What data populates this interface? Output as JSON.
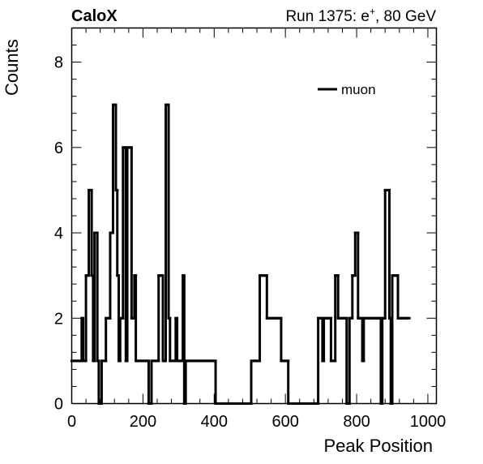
{
  "header": {
    "experiment": "CaloX",
    "run_prefix": "Run 1375: e",
    "run_superscript": "+",
    "run_suffix": ", 80 GeV"
  },
  "chart_data": {
    "type": "histogram",
    "title": "",
    "xlabel": "Peak Position",
    "ylabel": "Counts",
    "xlim": [
      0,
      1024
    ],
    "ylim": [
      0,
      8.8
    ],
    "x_ticks": [
      0,
      200,
      400,
      600,
      800,
      1000
    ],
    "y_ticks": [
      0,
      2,
      4,
      6,
      8
    ],
    "bin_width": 4,
    "legend": {
      "position": "top-right",
      "entries": [
        "muon"
      ]
    },
    "grid": false,
    "series": [
      {
        "name": "muon",
        "color": "#000000",
        "bin_edges_start": 0,
        "values": [
          1,
          1,
          1,
          1,
          1,
          1,
          1,
          2,
          1,
          1,
          3,
          3,
          5,
          5,
          3,
          1,
          4,
          4,
          1,
          0,
          0,
          1,
          1,
          1,
          2,
          2,
          2,
          4,
          4,
          7,
          7,
          5,
          3,
          1,
          2,
          2,
          6,
          6,
          1,
          6,
          6,
          6,
          2,
          2,
          3,
          1,
          1,
          1,
          1,
          1,
          1,
          1,
          1,
          1,
          0,
          0,
          1,
          1,
          1,
          1,
          1,
          3,
          3,
          3,
          1,
          1,
          7,
          7,
          2,
          1,
          1,
          1,
          1,
          2,
          1,
          1,
          1,
          1,
          3,
          0,
          1,
          1,
          1,
          1,
          1,
          1,
          1,
          1,
          1,
          1,
          1,
          1,
          1,
          1,
          1,
          1,
          1,
          1,
          1,
          1,
          1,
          0,
          0,
          0,
          0,
          0,
          0,
          0,
          0,
          0,
          0,
          0,
          0,
          0,
          0,
          0,
          0,
          0,
          0,
          0,
          0,
          0,
          0,
          0,
          0,
          0,
          1,
          1,
          1,
          1,
          1,
          1,
          3,
          3,
          3,
          3,
          3,
          2,
          2,
          2,
          2,
          2,
          2,
          2,
          2,
          2,
          2,
          1,
          1,
          1,
          1,
          1,
          0,
          0,
          0,
          0,
          0,
          0,
          0,
          0,
          0,
          0,
          0,
          0,
          0,
          0,
          0,
          0,
          0,
          0,
          0,
          0,
          0,
          2,
          2,
          2,
          1,
          2,
          2,
          2,
          2,
          2,
          1,
          1,
          1,
          3,
          3,
          2,
          2,
          2,
          2,
          2,
          2,
          0,
          0,
          2,
          2,
          3,
          3,
          4,
          4,
          2,
          2,
          2,
          1,
          2,
          2,
          2,
          2,
          2,
          2,
          2,
          2,
          2,
          2,
          2,
          2,
          0,
          2,
          2,
          5,
          5,
          5,
          2,
          0,
          3,
          3,
          3,
          3,
          2,
          2,
          2,
          2,
          2,
          2,
          2,
          2
        ]
      }
    ],
    "values_note_unused": ""
  }
}
